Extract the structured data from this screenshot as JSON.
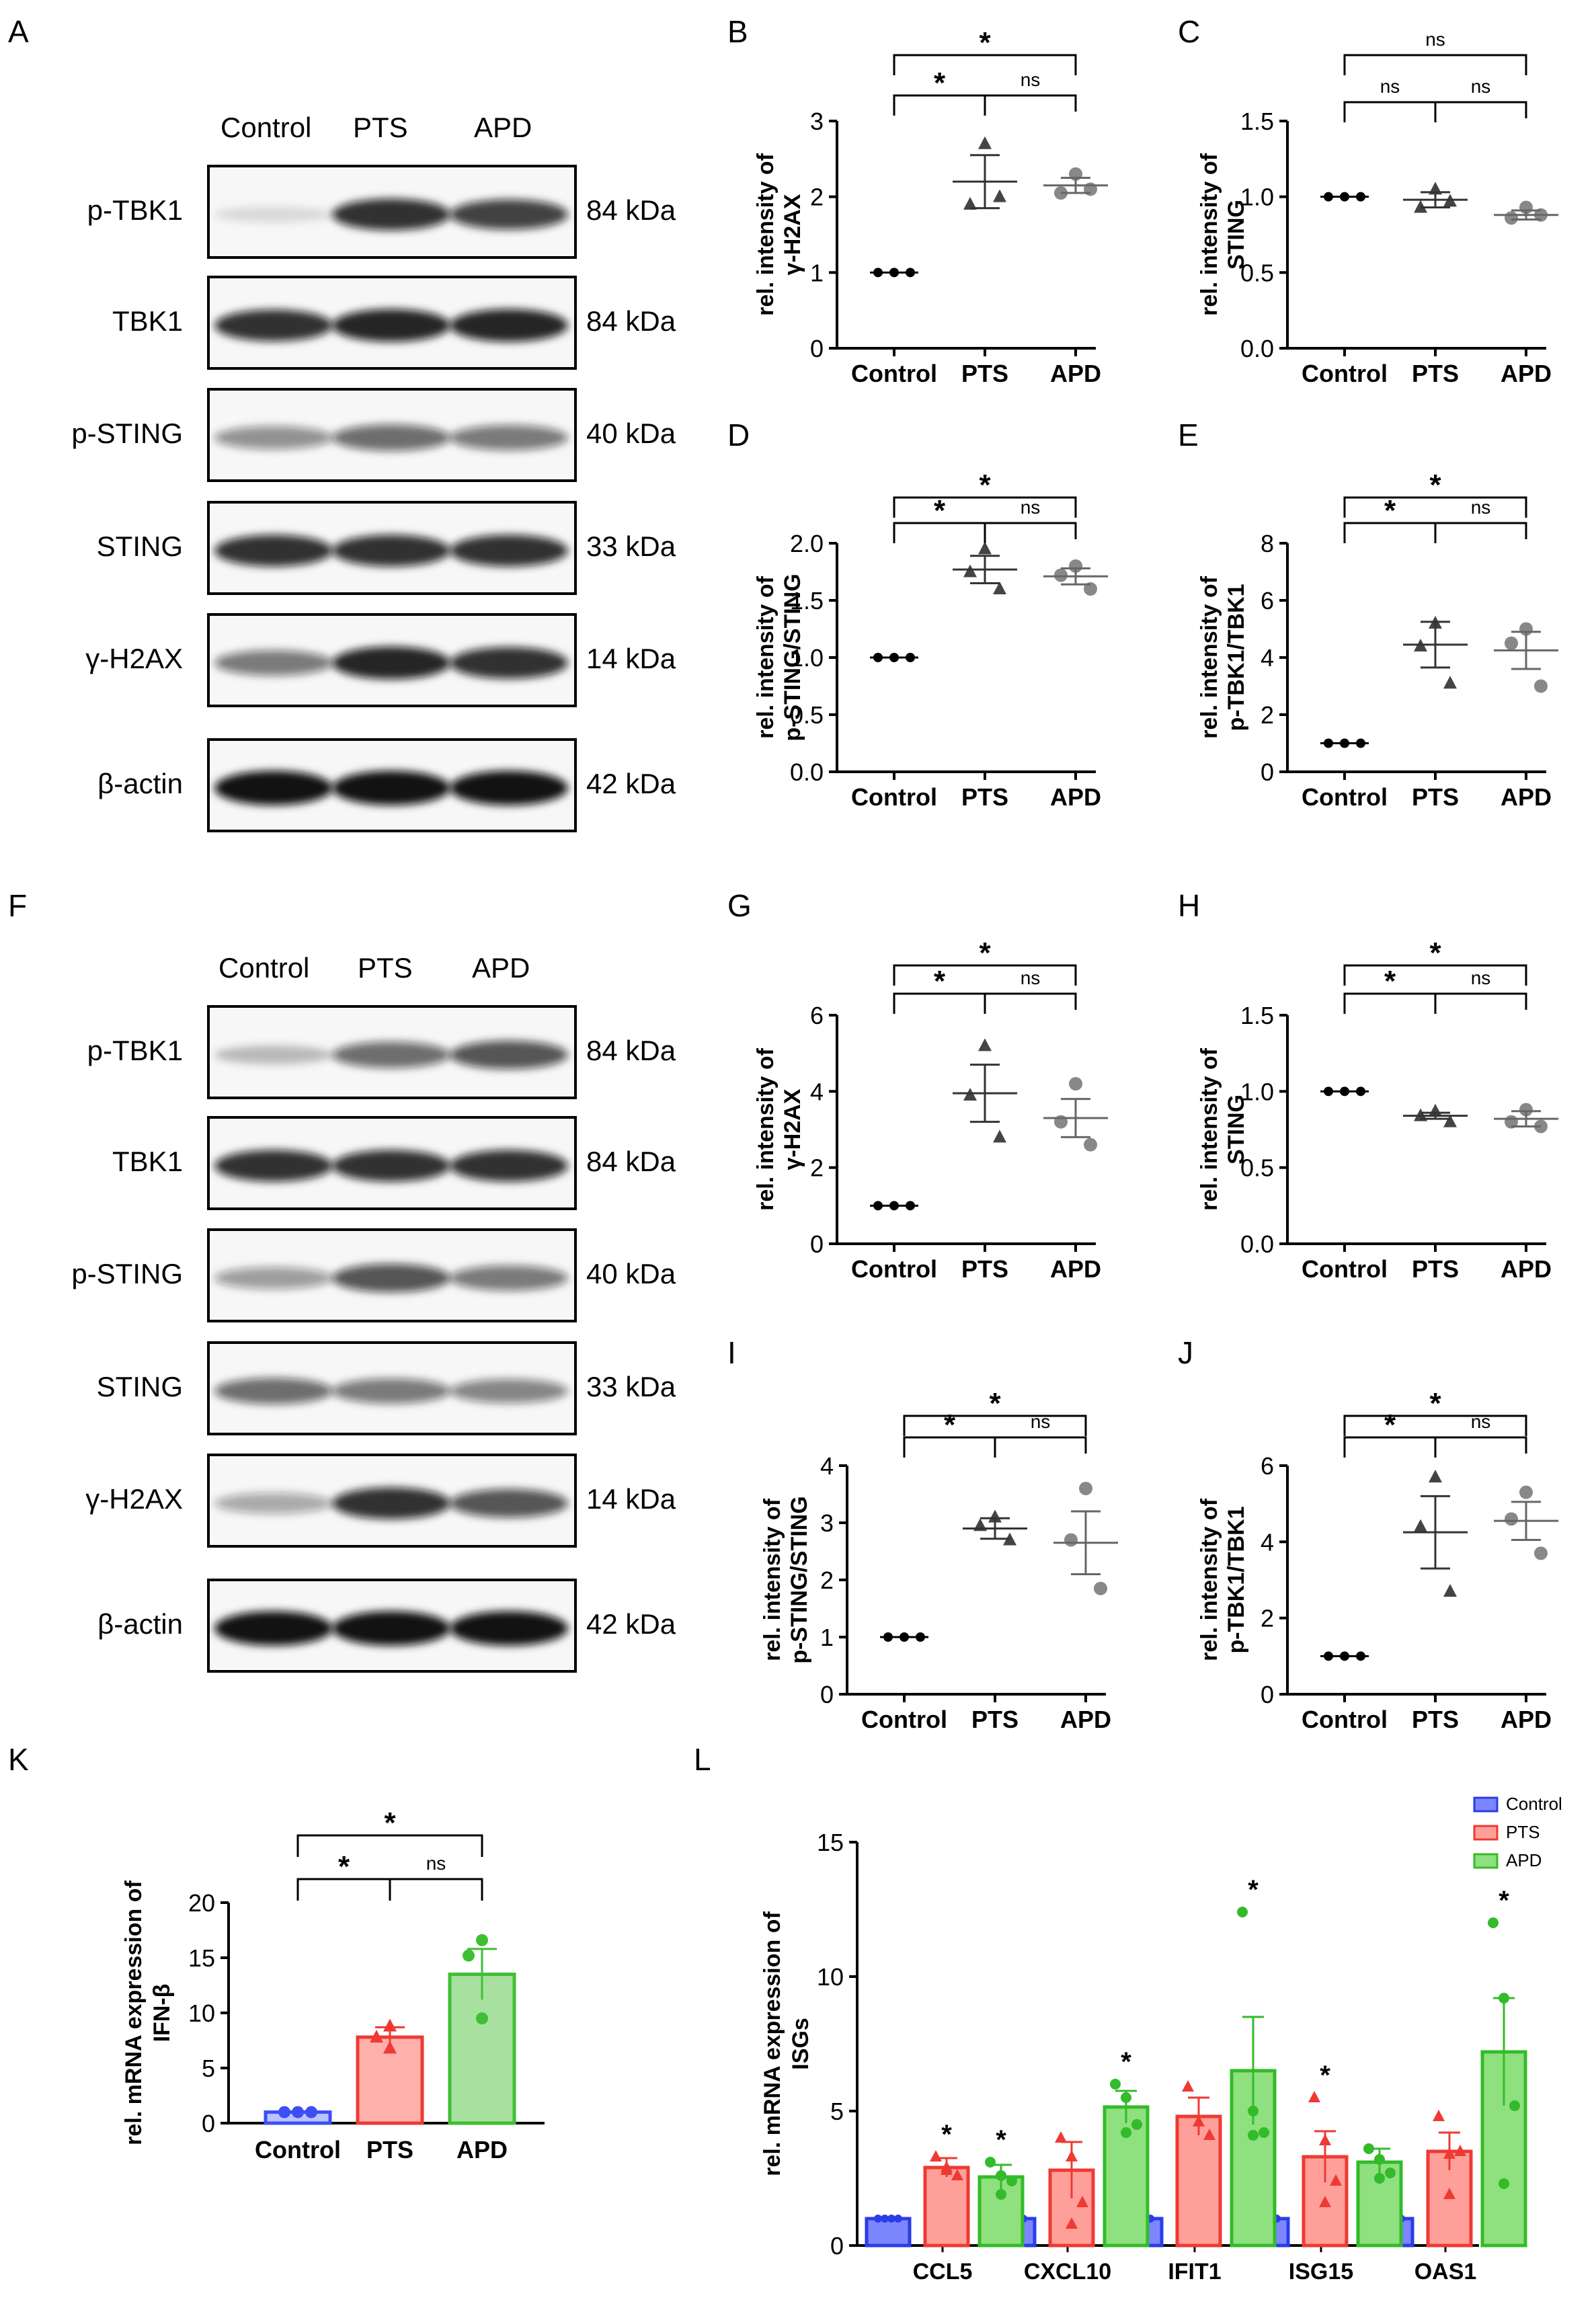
{
  "panels": {
    "A": "A",
    "B": "B",
    "C": "C",
    "D": "D",
    "E": "E",
    "F": "F",
    "G": "G",
    "H": "H",
    "I": "I",
    "J": "J",
    "K": "K",
    "L": "L"
  },
  "blots": [
    {
      "id": "A",
      "lanes": [
        "Control",
        "PTS",
        "APD"
      ],
      "rows": [
        {
          "protein": "p-TBK1",
          "kda": "84 kDa",
          "intensity": [
            0.12,
            0.85,
            0.78
          ]
        },
        {
          "protein": "TBK1",
          "kda": "84 kDa",
          "intensity": [
            0.85,
            0.9,
            0.9
          ]
        },
        {
          "protein": "p-STING",
          "kda": "40 kDa",
          "intensity": [
            0.45,
            0.6,
            0.55
          ]
        },
        {
          "protein": "STING",
          "kda": "33 kDa",
          "intensity": [
            0.85,
            0.85,
            0.85
          ]
        },
        {
          "protein": "γ-H2AX",
          "kda": "14 kDa",
          "intensity": [
            0.55,
            0.9,
            0.85
          ]
        },
        {
          "protein": "β-actin",
          "kda": "42 kDa",
          "intensity": [
            0.98,
            0.98,
            0.98
          ]
        }
      ]
    },
    {
      "id": "F",
      "lanes": [
        "Control",
        "PTS",
        "APD"
      ],
      "rows": [
        {
          "protein": "p-TBK1",
          "kda": "84 kDa",
          "intensity": [
            0.25,
            0.6,
            0.7
          ]
        },
        {
          "protein": "TBK1",
          "kda": "84 kDa",
          "intensity": [
            0.85,
            0.85,
            0.85
          ]
        },
        {
          "protein": "p-STING",
          "kda": "40 kDa",
          "intensity": [
            0.4,
            0.7,
            0.55
          ]
        },
        {
          "protein": "STING",
          "kda": "33 kDa",
          "intensity": [
            0.6,
            0.55,
            0.5
          ]
        },
        {
          "protein": "γ-H2AX",
          "kda": "14 kDa",
          "intensity": [
            0.35,
            0.85,
            0.7
          ]
        },
        {
          "protein": "β-actin",
          "kda": "42 kDa",
          "intensity": [
            0.98,
            0.98,
            0.98
          ]
        }
      ]
    }
  ],
  "significance": {
    "star": "*",
    "ns": "ns"
  },
  "chart_data": [
    {
      "id": "B",
      "type": "scatter",
      "categories": [
        "Control",
        "PTS",
        "APD"
      ],
      "ylabel": "rel. intensity of\nγ-H2AX",
      "ylim": [
        0,
        3
      ],
      "yticks": [
        0,
        1,
        2,
        3
      ],
      "points": [
        [
          1,
          1,
          1
        ],
        [
          2.7,
          1.9,
          2.0
        ],
        [
          2.3,
          2.05,
          2.1
        ]
      ],
      "mean": [
        1,
        2.2,
        2.15
      ],
      "sem": [
        0,
        0.35,
        0.1
      ],
      "brackets": [
        {
          "from": 0,
          "to": 1,
          "label": "*"
        },
        {
          "from": 1,
          "to": 2,
          "label": "ns"
        },
        {
          "from": 0,
          "to": 2,
          "label": "*"
        }
      ]
    },
    {
      "id": "C",
      "type": "scatter",
      "categories": [
        "Control",
        "PTS",
        "APD"
      ],
      "ylabel": "rel. intensity of\nSTING",
      "ylim": [
        0,
        1.5
      ],
      "yticks": [
        0.0,
        0.5,
        1.0,
        1.5
      ],
      "points": [
        [
          1,
          1,
          1
        ],
        [
          1.05,
          0.93,
          0.97
        ],
        [
          0.93,
          0.86,
          0.88
        ]
      ],
      "mean": [
        1,
        0.98,
        0.88
      ],
      "sem": [
        0,
        0.05,
        0.03
      ],
      "brackets": [
        {
          "from": 0,
          "to": 1,
          "label": "ns"
        },
        {
          "from": 1,
          "to": 2,
          "label": "ns"
        },
        {
          "from": 0,
          "to": 2,
          "label": "ns"
        }
      ]
    },
    {
      "id": "D",
      "type": "scatter",
      "categories": [
        "Control",
        "PTS",
        "APD"
      ],
      "ylabel": "rel. intensity of\np-STING/STING",
      "ylim": [
        0,
        2.0
      ],
      "yticks": [
        0.0,
        0.5,
        1.0,
        1.5,
        2.0
      ],
      "points": [
        [
          1,
          1,
          1
        ],
        [
          1.95,
          1.75,
          1.6
        ],
        [
          1.8,
          1.72,
          1.6
        ]
      ],
      "mean": [
        1,
        1.77,
        1.71
      ],
      "sem": [
        0,
        0.12,
        0.07
      ],
      "brackets": [
        {
          "from": 0,
          "to": 1,
          "label": "*"
        },
        {
          "from": 1,
          "to": 2,
          "label": "ns"
        },
        {
          "from": 0,
          "to": 2,
          "label": "*"
        }
      ]
    },
    {
      "id": "E",
      "type": "scatter",
      "categories": [
        "Control",
        "PTS",
        "APD"
      ],
      "ylabel": "rel. intensity of\np-TBK1/TBK1",
      "ylim": [
        0,
        8
      ],
      "yticks": [
        0,
        2,
        4,
        6,
        8
      ],
      "points": [
        [
          1,
          1,
          1
        ],
        [
          5.2,
          4.4,
          3.1
        ],
        [
          5.0,
          4.5,
          3.0
        ]
      ],
      "mean": [
        1,
        4.45,
        4.25
      ],
      "sem": [
        0,
        0.8,
        0.65
      ],
      "brackets": [
        {
          "from": 0,
          "to": 1,
          "label": "*"
        },
        {
          "from": 1,
          "to": 2,
          "label": "ns"
        },
        {
          "from": 0,
          "to": 2,
          "label": "*"
        }
      ]
    },
    {
      "id": "G",
      "type": "scatter",
      "categories": [
        "Control",
        "PTS",
        "APD"
      ],
      "ylabel": "rel. intensity of\nγ-H2AX",
      "ylim": [
        0,
        6
      ],
      "yticks": [
        0,
        2,
        4,
        6
      ],
      "points": [
        [
          1,
          1,
          1
        ],
        [
          5.2,
          3.9,
          2.8
        ],
        [
          4.2,
          3.2,
          2.6
        ]
      ],
      "mean": [
        1,
        3.95,
        3.3
      ],
      "sem": [
        0,
        0.75,
        0.5
      ],
      "brackets": [
        {
          "from": 0,
          "to": 1,
          "label": "*"
        },
        {
          "from": 1,
          "to": 2,
          "label": "ns"
        },
        {
          "from": 0,
          "to": 2,
          "label": "*"
        }
      ]
    },
    {
      "id": "H",
      "type": "scatter",
      "categories": [
        "Control",
        "PTS",
        "APD"
      ],
      "ylabel": "rel. intensity of\nSTING",
      "ylim": [
        0,
        1.5
      ],
      "yticks": [
        0.0,
        0.5,
        1.0,
        1.5
      ],
      "points": [
        [
          1,
          1,
          1
        ],
        [
          0.87,
          0.84,
          0.8
        ],
        [
          0.88,
          0.8,
          0.77
        ]
      ],
      "mean": [
        1,
        0.84,
        0.82
      ],
      "sem": [
        0,
        0.02,
        0.05
      ],
      "brackets": [
        {
          "from": 0,
          "to": 1,
          "label": "*"
        },
        {
          "from": 1,
          "to": 2,
          "label": "ns"
        },
        {
          "from": 0,
          "to": 2,
          "label": "*"
        }
      ]
    },
    {
      "id": "I",
      "type": "scatter",
      "categories": [
        "Control",
        "PTS",
        "APD"
      ],
      "ylabel": "rel. intensity of\np-STING/STING",
      "ylim": [
        0,
        4
      ],
      "yticks": [
        0,
        1,
        2,
        3,
        4
      ],
      "points": [
        [
          1,
          1,
          1
        ],
        [
          3.1,
          2.95,
          2.7
        ],
        [
          3.6,
          2.7,
          1.85
        ]
      ],
      "mean": [
        1,
        2.9,
        2.65
      ],
      "sem": [
        0,
        0.18,
        0.55
      ],
      "brackets": [
        {
          "from": 0,
          "to": 1,
          "label": "*"
        },
        {
          "from": 1,
          "to": 2,
          "label": "ns"
        },
        {
          "from": 0,
          "to": 2,
          "label": "*"
        }
      ]
    },
    {
      "id": "J",
      "type": "scatter",
      "categories": [
        "Control",
        "PTS",
        "APD"
      ],
      "ylabel": "rel. intensity of\np-TBK1/TBK1",
      "ylim": [
        0,
        6
      ],
      "yticks": [
        0,
        2,
        4,
        6
      ],
      "points": [
        [
          1,
          1,
          1
        ],
        [
          5.7,
          4.4,
          2.7
        ],
        [
          5.3,
          4.6,
          3.7
        ]
      ],
      "mean": [
        1,
        4.25,
        4.55
      ],
      "sem": [
        0,
        0.95,
        0.5
      ],
      "brackets": [
        {
          "from": 0,
          "to": 1,
          "label": "*"
        },
        {
          "from": 1,
          "to": 2,
          "label": "ns"
        },
        {
          "from": 0,
          "to": 2,
          "label": "*"
        }
      ]
    },
    {
      "id": "K",
      "type": "bar",
      "categories": [
        "Control",
        "PTS",
        "APD"
      ],
      "ylabel": "rel. mRNA expression of\nIFN-β",
      "ylim": [
        0,
        20
      ],
      "yticks": [
        0,
        5,
        10,
        15,
        20
      ],
      "values": [
        1,
        7.8,
        13.5
      ],
      "sem": [
        0.05,
        0.9,
        2.3
      ],
      "points": [
        [
          1,
          1,
          1
        ],
        [
          8.8,
          7.8,
          6.8
        ],
        [
          16.6,
          15.2,
          9.5
        ]
      ],
      "brackets": [
        {
          "from": 0,
          "to": 1,
          "label": "*"
        },
        {
          "from": 1,
          "to": 2,
          "label": "ns"
        },
        {
          "from": 0,
          "to": 2,
          "label": "*"
        }
      ]
    },
    {
      "id": "L",
      "type": "bar",
      "categories": [
        "CCL5",
        "CXCL10",
        "IFIT1",
        "ISG15",
        "OAS1"
      ],
      "ylabel": "rel. mRNA expression of\nISGs",
      "ylim": [
        0,
        15
      ],
      "yticks": [
        0,
        5,
        10,
        15
      ],
      "series": [
        {
          "name": "Control",
          "values": [
            1,
            1,
            1,
            1,
            1
          ],
          "sem": [
            0,
            0,
            0,
            0,
            0
          ],
          "points": [
            [
              1,
              1,
              1,
              1
            ],
            [
              1,
              1,
              1,
              1
            ],
            [
              1,
              1,
              1,
              1
            ],
            [
              1,
              1,
              1,
              1
            ],
            [
              1,
              1,
              1,
              1
            ]
          ]
        },
        {
          "name": "PTS",
          "values": [
            2.9,
            2.8,
            4.8,
            3.3,
            3.5
          ],
          "sem": [
            0.35,
            1.05,
            0.7,
            0.95,
            0.7
          ],
          "points": [
            [
              3.3,
              2.8,
              2.6,
              2.9
            ],
            [
              4.0,
              3.3,
              1.6,
              0.8
            ],
            [
              5.9,
              4.6,
              4.1,
              4.6
            ],
            [
              5.5,
              3.9,
              2.4,
              1.6
            ],
            [
              4.8,
              3.4,
              3.5,
              1.9
            ]
          ],
          "stars": [
            true,
            false,
            false,
            true,
            false
          ]
        },
        {
          "name": "APD",
          "values": [
            2.55,
            5.15,
            6.5,
            3.1,
            7.2
          ],
          "sem": [
            0.45,
            0.6,
            2.0,
            0.5,
            2.0
          ],
          "points": [
            [
              3.1,
              2.6,
              2.4,
              1.9
            ],
            [
              6.0,
              5.5,
              4.5,
              4.2
            ],
            [
              12.4,
              5.0,
              4.2,
              4.1
            ],
            [
              3.6,
              3.2,
              2.7,
              2.5
            ],
            [
              12.0,
              9.2,
              5.2,
              2.3
            ]
          ],
          "stars": [
            true,
            true,
            true,
            false,
            true
          ]
        }
      ]
    }
  ]
}
